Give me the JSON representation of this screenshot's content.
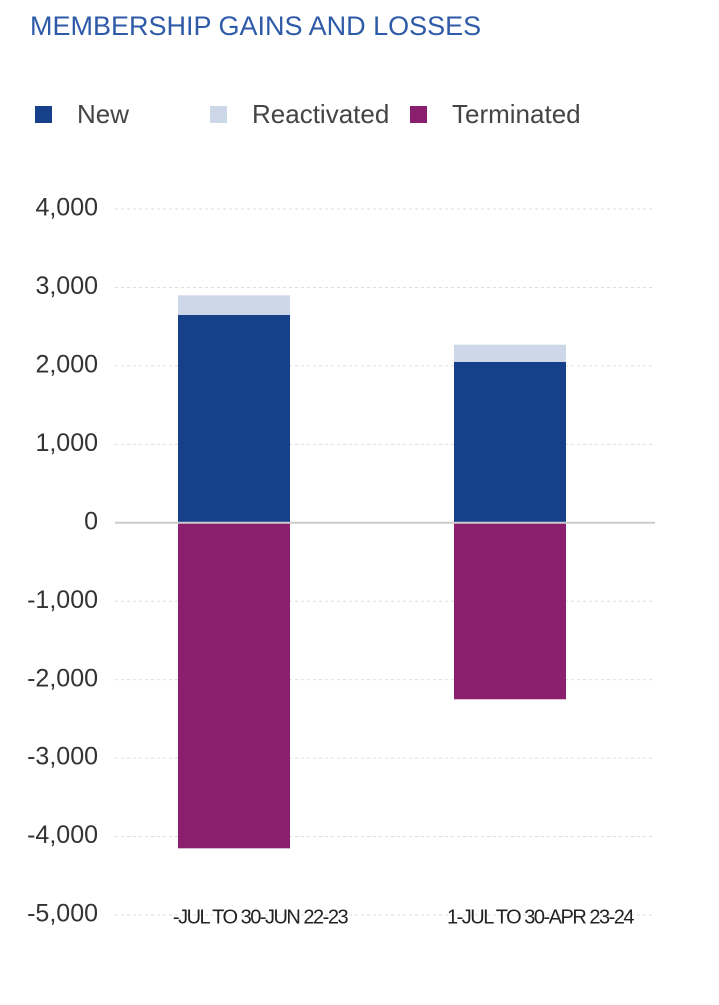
{
  "chart_data": {
    "type": "stacked-bar",
    "title": "MEMBERSHIP GAINS AND LOSSES",
    "categories": [
      "-JUL TO 30-JUN 22-23",
      "1-JUL TO 30-APR 23-24"
    ],
    "series": [
      {
        "name": "New",
        "color": "#17408b",
        "values": [
          2650,
          2050
        ]
      },
      {
        "name": "Reactivated",
        "color": "#ccd8e8",
        "values": [
          250,
          220
        ]
      },
      {
        "name": "Terminated",
        "color": "#8a1f6e",
        "values": [
          -4150,
          -2250
        ]
      }
    ],
    "ylim": [
      -5000,
      4000
    ],
    "yticks": [
      {
        "value": -5000,
        "label": "-5,000"
      },
      {
        "value": -4000,
        "label": "-4,000"
      },
      {
        "value": -3000,
        "label": "-3,000"
      },
      {
        "value": -2000,
        "label": "-2,000"
      },
      {
        "value": -1000,
        "label": "-1,000"
      },
      0,
      {
        "value": 1000,
        "label": "1,000"
      },
      {
        "value": 2000,
        "label": "2,000"
      },
      {
        "value": 3000,
        "label": "3,000"
      },
      {
        "value": 4000,
        "label": "4,000"
      }
    ],
    "grid": true
  }
}
